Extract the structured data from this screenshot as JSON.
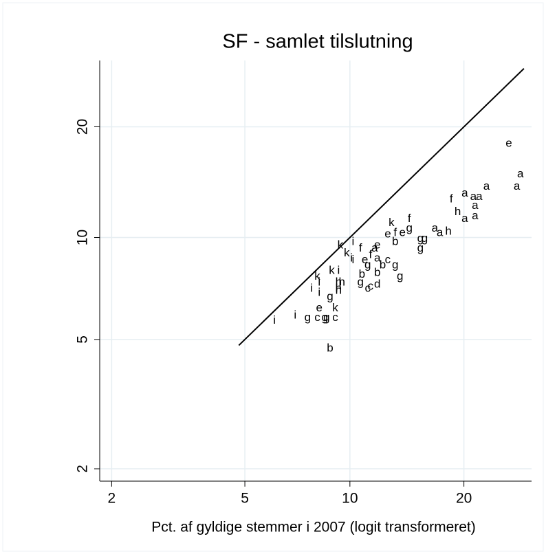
{
  "chart_data": {
    "type": "scatter",
    "title": "SF - samlet tilslutning",
    "x_label": "Pct. af gyldige stemmer i 2007 (logit transformeret)",
    "xscale": "logit",
    "yscale": "logit",
    "grid": true,
    "color": "#000000",
    "xlim": [
      1.84,
      28.8
    ],
    "ylim": [
      1.83,
      28.9
    ],
    "xticks": [
      2,
      5,
      10,
      20
    ],
    "yticks": [
      2,
      5,
      10,
      20
    ],
    "line_x": [
      4.8,
      27.7
    ],
    "line_y": [
      4.8,
      27.7
    ],
    "markers": [
      "e",
      "a",
      "a",
      "a",
      "a",
      "a",
      "a",
      "f",
      "a",
      "h",
      "a",
      "a",
      "a",
      "a",
      "h",
      "f",
      "k",
      "e",
      "f",
      "e",
      "g",
      "b",
      "g",
      "g",
      "g",
      "i",
      "k",
      "k",
      "i",
      "i",
      "f",
      "e",
      "a",
      "f",
      "a",
      "e",
      "c",
      "g",
      "b",
      "b",
      "g",
      "g",
      "k",
      "i",
      "k",
      "i",
      "h",
      "h",
      "b",
      "d",
      "c",
      "g",
      "c",
      "h",
      "i",
      "i",
      "g",
      "h",
      "e",
      "k",
      "g",
      "g",
      "c",
      "g",
      "c",
      "i",
      "i",
      "b"
    ],
    "x": [
      25.6,
      27.2,
      26.7,
      22.7,
      20.1,
      21.1,
      21.8,
      18.6,
      21.3,
      19.3,
      20.1,
      21.3,
      16.9,
      17.4,
      18.3,
      14.5,
      13.0,
      13.9,
      13.3,
      12.7,
      14.5,
      13.3,
      15.5,
      15.9,
      15.5,
      10.2,
      9.4,
      9.8,
      10.1,
      10.2,
      10.7,
      11.9,
      11.7,
      11.4,
      11.9,
      11.0,
      12.7,
      11.2,
      11.9,
      12.3,
      13.3,
      13.7,
      8.9,
      9.3,
      8.1,
      8.2,
      9.3,
      9.5,
      10.8,
      11.9,
      11.4,
      10.7,
      11.2,
      9.3,
      7.8,
      8.2,
      8.8,
      9.3,
      8.2,
      9.1,
      8.6,
      7.6,
      8.1,
      8.5,
      9.1,
      7.0,
      6.1,
      8.8
    ],
    "y": [
      18.1,
      15.0,
      13.9,
      13.9,
      13.3,
      13.0,
      13.0,
      12.8,
      12.3,
      11.8,
      11.3,
      11.5,
      10.6,
      10.3,
      10.4,
      11.3,
      11.0,
      10.3,
      10.3,
      10.2,
      10.6,
      9.7,
      9.9,
      9.9,
      9.3,
      9.7,
      9.5,
      9.0,
      8.7,
      8.6,
      9.3,
      9.5,
      9.3,
      8.9,
      8.7,
      8.6,
      8.6,
      8.3,
      7.9,
      8.3,
      8.3,
      7.7,
      8.0,
      8.0,
      7.7,
      7.4,
      7.4,
      7.4,
      7.8,
      7.3,
      7.2,
      7.4,
      7.1,
      7.1,
      7.1,
      6.9,
      6.7,
      7.0,
      6.2,
      6.2,
      5.8,
      5.8,
      5.8,
      5.8,
      5.8,
      5.9,
      5.7,
      4.7
    ]
  }
}
